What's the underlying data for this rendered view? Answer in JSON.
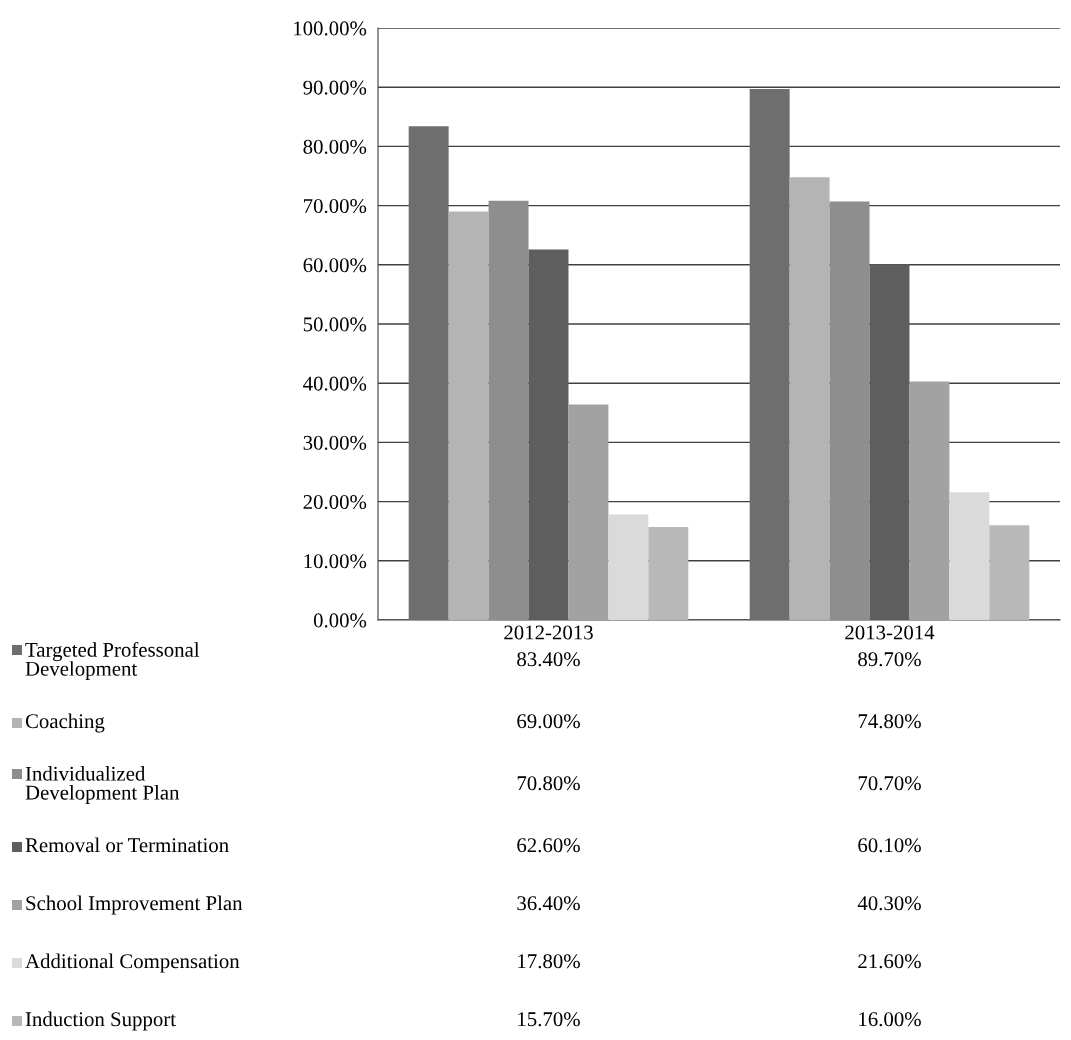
{
  "chart_data": {
    "type": "bar",
    "categories": [
      "2012-2013",
      "2013-2014"
    ],
    "series": [
      {
        "name": "Targeted Professonal Development",
        "color": "#6e6e6e",
        "values": [
          83.4,
          89.7
        ],
        "value_labels": [
          "83.40%",
          "89.70%"
        ]
      },
      {
        "name": "Coaching",
        "color": "#b4b4b4",
        "values": [
          69.0,
          74.8
        ],
        "value_labels": [
          "69.00%",
          "74.80%"
        ]
      },
      {
        "name": "Individualized Development Plan",
        "color": "#8e8e8e",
        "values": [
          70.8,
          70.7
        ],
        "value_labels": [
          "70.80%",
          "70.70%"
        ]
      },
      {
        "name": "Removal or Termination",
        "color": "#5e5e5e",
        "values": [
          62.6,
          60.1
        ],
        "value_labels": [
          "62.60%",
          "60.10%"
        ]
      },
      {
        "name": "School Improvement Plan",
        "color": "#a2a2a2",
        "values": [
          36.4,
          40.3
        ],
        "value_labels": [
          "36.40%",
          "40.30%"
        ]
      },
      {
        "name": "Additional Compensation",
        "color": "#dadada",
        "values": [
          17.8,
          21.6
        ],
        "value_labels": [
          "17.80%",
          "21.60%"
        ]
      },
      {
        "name": "Induction Support",
        "color": "#b8b8b8",
        "values": [
          15.7,
          16.0
        ],
        "value_labels": [
          "15.70%",
          "16.00%"
        ]
      }
    ],
    "ylim": [
      0,
      100
    ],
    "yticks": [
      {
        "value": 0,
        "label": "0.00%"
      },
      {
        "value": 10,
        "label": "10.00%"
      },
      {
        "value": 20,
        "label": "20.00%"
      },
      {
        "value": 30,
        "label": "30.00%"
      },
      {
        "value": 40,
        "label": "40.00%"
      },
      {
        "value": 50,
        "label": "50.00%"
      },
      {
        "value": 60,
        "label": "60.00%"
      },
      {
        "value": 70,
        "label": "70.00%"
      },
      {
        "value": 80,
        "label": "80.00%"
      },
      {
        "value": 90,
        "label": "90.00%"
      },
      {
        "value": 100,
        "label": "100.00%"
      }
    ],
    "grid": "y",
    "legend": "bottom"
  }
}
